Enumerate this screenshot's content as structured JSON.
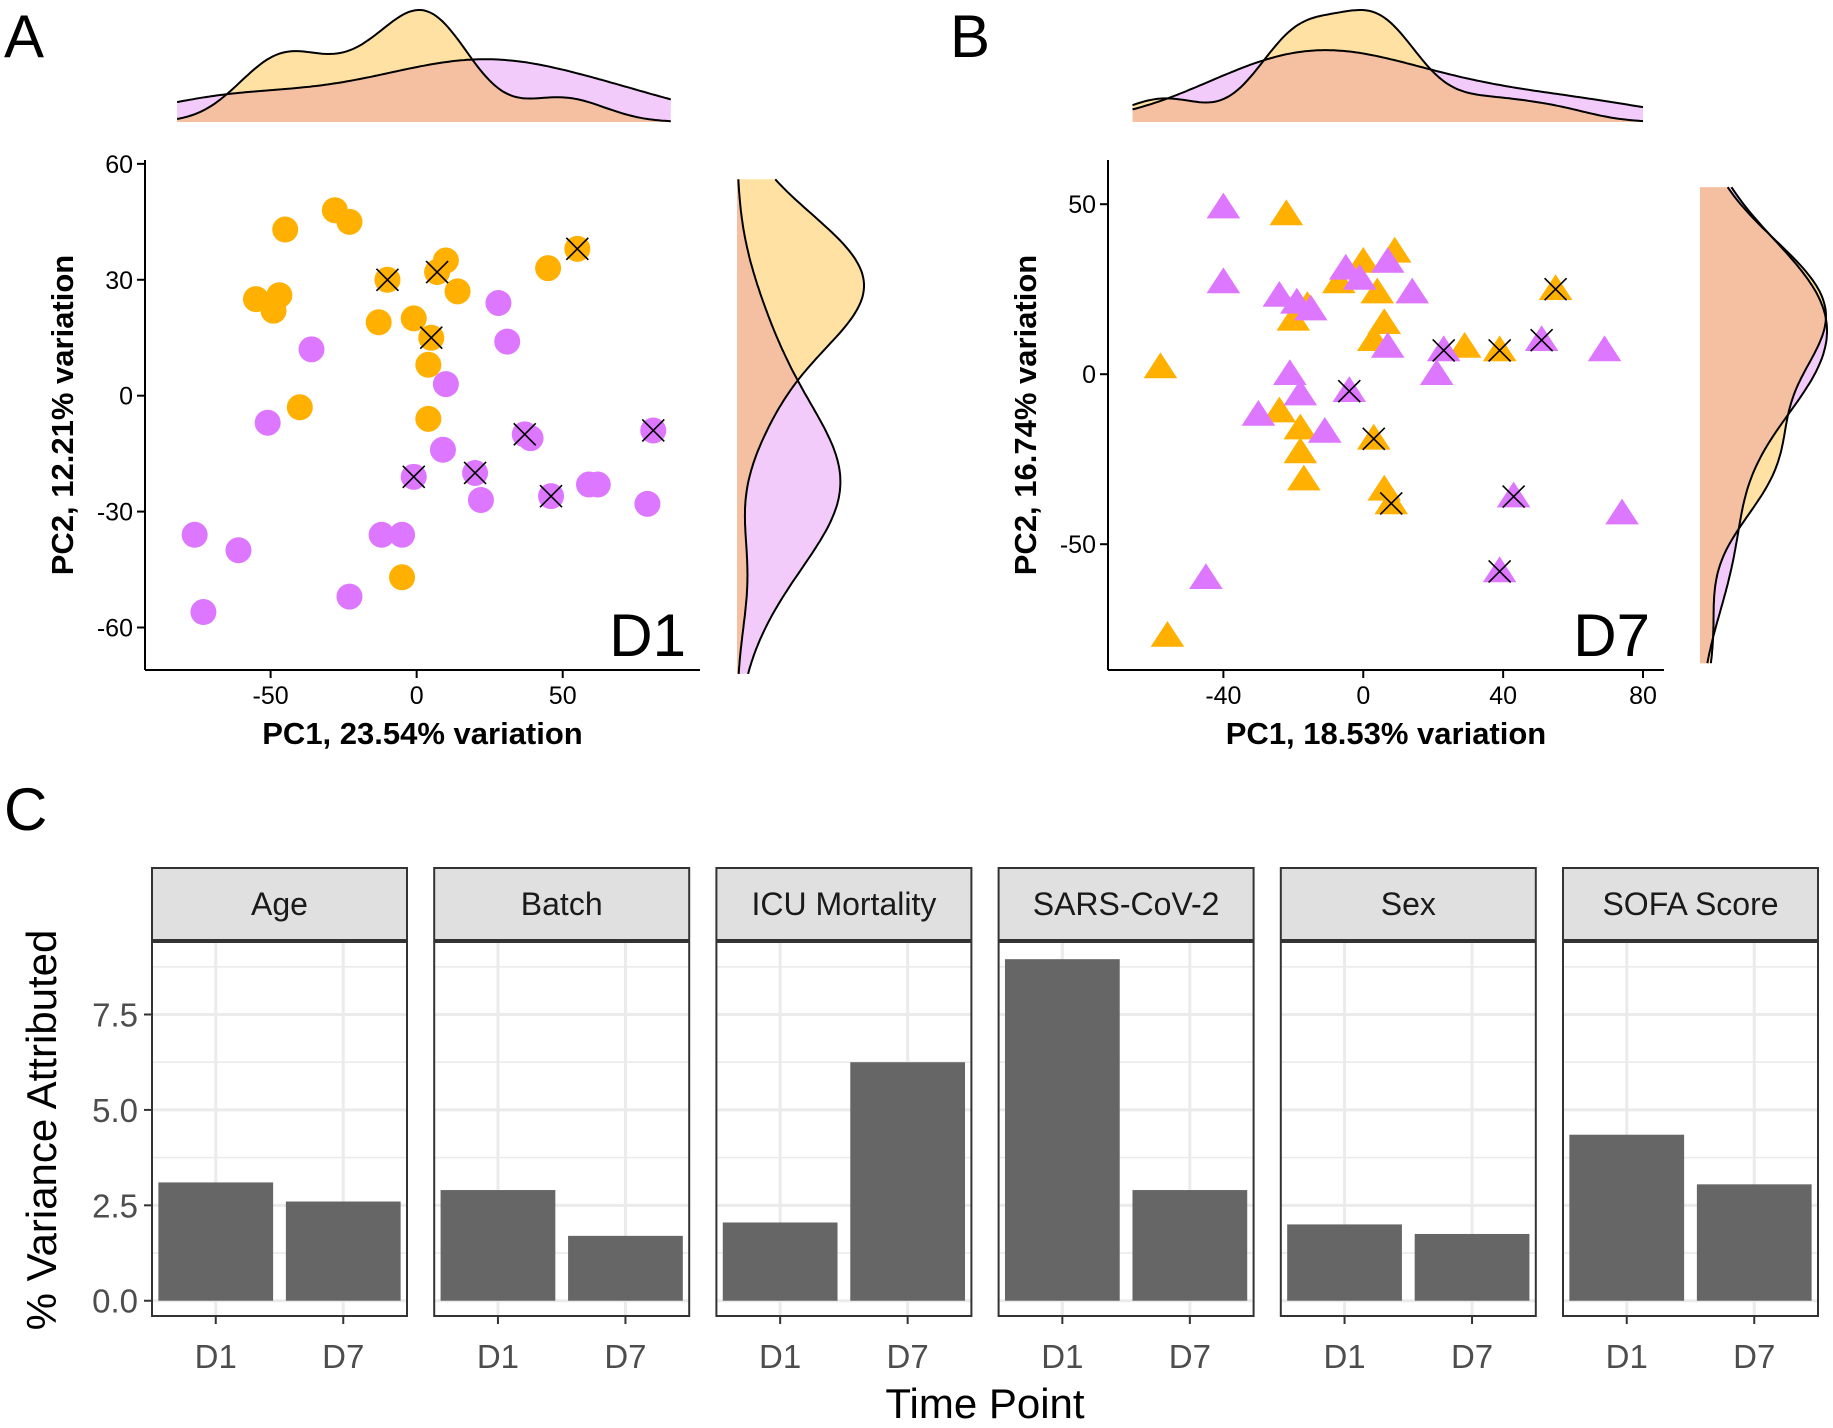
{
  "colors": {
    "group1": "#FFB000",
    "group2": "#DD77FF",
    "group1_density": "#FFE2A3",
    "group2_density": "#F2CBFA",
    "density_overlap": "#F5C0A2",
    "bar": "#666666",
    "strip_fill": "#E0E0E0",
    "grid": "#EBEBEB"
  },
  "panels": {
    "A": "A",
    "B": "B",
    "C": "C"
  },
  "chart_data": [
    {
      "id": "A",
      "type": "scatter",
      "inset_label": "D1",
      "marker": "circle",
      "xlabel": "PC1, 23.54% variation",
      "ylabel": "PC2, 12.21% variation",
      "xlim": [
        -93,
        97
      ],
      "ylim": [
        -71,
        61
      ],
      "xticks": [
        -50,
        0,
        50
      ],
      "yticks": [
        -60,
        -30,
        0,
        30,
        60
      ],
      "xtick_labels": [
        "-50",
        "0",
        "50"
      ],
      "ytick_labels": [
        "-60",
        "-30",
        "0",
        "30",
        "60"
      ],
      "series": [
        {
          "name": "group1",
          "color": "#FFB000",
          "points": [
            [
              -28,
              48
            ],
            [
              -23,
              45
            ],
            [
              -45,
              43
            ],
            [
              -10,
              30
            ],
            [
              10,
              35
            ],
            [
              7,
              32
            ],
            [
              55,
              38
            ],
            [
              45,
              33
            ],
            [
              -47,
              26
            ],
            [
              -55,
              25
            ],
            [
              -49,
              22
            ],
            [
              -13,
              19
            ],
            [
              14,
              27
            ],
            [
              -1,
              20
            ],
            [
              5,
              15
            ],
            [
              4,
              8
            ],
            [
              -40,
              -3
            ],
            [
              4,
              -6
            ],
            [
              -5,
              -47
            ]
          ],
          "crossed": [
            [
              -10,
              30
            ],
            [
              7,
              32
            ],
            [
              5,
              15
            ],
            [
              55,
              38
            ]
          ]
        },
        {
          "name": "group2",
          "color": "#DD77FF",
          "points": [
            [
              -36,
              12
            ],
            [
              28,
              24
            ],
            [
              31,
              14
            ],
            [
              10,
              3
            ],
            [
              -51,
              -7
            ],
            [
              37,
              -10
            ],
            [
              39,
              -11
            ],
            [
              9,
              -14
            ],
            [
              81,
              -9
            ],
            [
              -1,
              -21
            ],
            [
              20,
              -20
            ],
            [
              22,
              -27
            ],
            [
              46,
              -26
            ],
            [
              59,
              -23
            ],
            [
              62,
              -23
            ],
            [
              79,
              -28
            ],
            [
              -76,
              -36
            ],
            [
              -61,
              -40
            ],
            [
              -12,
              -36
            ],
            [
              -5,
              -36
            ],
            [
              -73,
              -56
            ],
            [
              -23,
              -52
            ]
          ],
          "crossed": [
            [
              37,
              -10
            ],
            [
              81,
              -9
            ],
            [
              -1,
              -21
            ],
            [
              20,
              -20
            ],
            [
              46,
              -26
            ]
          ]
        }
      ]
    },
    {
      "id": "B",
      "type": "scatter",
      "inset_label": "D7",
      "marker": "triangle",
      "xlabel": "PC1, 18.53% variation",
      "ylabel": "PC2, 16.74% variation",
      "xlim": [
        -73,
        86
      ],
      "ylim": [
        -87,
        63
      ],
      "xticks": [
        -40,
        0,
        40,
        80
      ],
      "yticks": [
        -50,
        0,
        50
      ],
      "xtick_labels": [
        "-40",
        "0",
        "40",
        "80"
      ],
      "ytick_labels": [
        "-50",
        "0",
        "50"
      ],
      "series": [
        {
          "name": "group1",
          "color": "#FFB000",
          "points": [
            [
              -22,
              47
            ],
            [
              -7,
              27
            ],
            [
              0,
              33
            ],
            [
              9,
              36
            ],
            [
              4,
              24
            ],
            [
              -16,
              20
            ],
            [
              -20,
              16
            ],
            [
              6,
              15
            ],
            [
              3,
              10
            ],
            [
              55,
              25
            ],
            [
              29,
              8
            ],
            [
              39,
              7
            ],
            [
              -58,
              2
            ],
            [
              -24,
              -11
            ],
            [
              -18,
              -16
            ],
            [
              -18,
              -23
            ],
            [
              3,
              -19
            ],
            [
              -17,
              -31
            ],
            [
              6,
              -34
            ],
            [
              8,
              -38
            ],
            [
              -56,
              -77
            ]
          ],
          "crossed": [
            [
              55,
              25
            ],
            [
              39,
              7
            ],
            [
              3,
              -19
            ],
            [
              8,
              -38
            ]
          ]
        },
        {
          "name": "group2",
          "color": "#DD77FF",
          "points": [
            [
              -40,
              49
            ],
            [
              -40,
              27
            ],
            [
              -24,
              23
            ],
            [
              -19,
              21
            ],
            [
              -15,
              19
            ],
            [
              -5,
              31
            ],
            [
              -1,
              28
            ],
            [
              7,
              33
            ],
            [
              14,
              24
            ],
            [
              7,
              8
            ],
            [
              23,
              7
            ],
            [
              21,
              0
            ],
            [
              51,
              10
            ],
            [
              69,
              7
            ],
            [
              -21,
              0
            ],
            [
              -4,
              -5
            ],
            [
              -30,
              -12
            ],
            [
              -18,
              -6
            ],
            [
              -11,
              -17
            ],
            [
              43,
              -36
            ],
            [
              74,
              -41
            ],
            [
              39,
              -58
            ],
            [
              -45,
              -60
            ]
          ],
          "crossed": [
            [
              23,
              7
            ],
            [
              51,
              10
            ],
            [
              -4,
              -5
            ],
            [
              43,
              -36
            ],
            [
              39,
              -58
            ]
          ]
        }
      ]
    },
    {
      "id": "C",
      "type": "bar",
      "facets": [
        "Age",
        "Batch",
        "ICU Mortality",
        "SARS-CoV-2",
        "Sex",
        "SOFA Score"
      ],
      "categories": [
        "D1",
        "D7"
      ],
      "series": [
        {
          "name": "Age",
          "values": [
            3.1,
            2.6
          ]
        },
        {
          "name": "Batch",
          "values": [
            2.9,
            1.7
          ]
        },
        {
          "name": "ICU Mortality",
          "values": [
            2.05,
            6.25
          ]
        },
        {
          "name": "SARS-CoV-2",
          "values": [
            8.95,
            2.9
          ]
        },
        {
          "name": "Sex",
          "values": [
            2.0,
            1.75
          ]
        },
        {
          "name": "SOFA Score",
          "values": [
            4.35,
            3.05
          ]
        }
      ],
      "xlabel": "Time Point",
      "ylabel": "% Variance Attributed",
      "ylim": [
        -0.4,
        9.4
      ],
      "yticks": [
        0,
        2.5,
        5,
        7.5
      ],
      "ytick_labels": [
        "0.0",
        "2.5",
        "5.0",
        "7.5"
      ],
      "grid": true
    }
  ]
}
